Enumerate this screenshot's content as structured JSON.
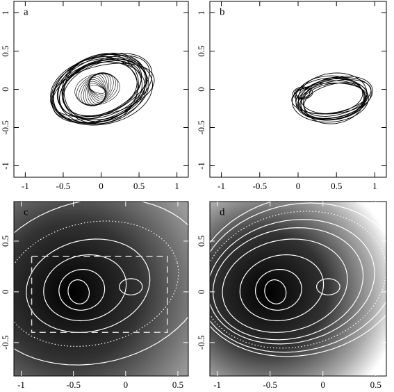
{
  "chart_data": [
    {
      "type": "orbit",
      "label": "a",
      "xlim": [
        -1.15,
        1.15
      ],
      "ylim": [
        -1.15,
        1.15
      ],
      "xticks": [
        -1,
        -0.5,
        0,
        0.5,
        1
      ],
      "yticks": [
        -1,
        -0.5,
        0,
        0.5,
        1
      ]
    },
    {
      "type": "orbit",
      "label": "b",
      "xlim": [
        -1.15,
        1.15
      ],
      "ylim": [
        -1.15,
        1.15
      ],
      "xticks": [
        -1,
        -0.5,
        0,
        0.5,
        1
      ],
      "yticks": [
        -1,
        -0.5,
        0,
        0.5,
        1
      ]
    },
    {
      "type": "contour",
      "label": "c",
      "xlim": [
        -1.07,
        0.6
      ],
      "ylim": [
        -0.83,
        0.89
      ],
      "xticks": [
        -1,
        -0.5,
        0,
        0.5
      ],
      "yticks": [
        -0.5,
        0,
        0.5
      ]
    },
    {
      "type": "contour",
      "label": "d",
      "xlim": [
        -1.07,
        0.6
      ],
      "ylim": [
        -0.83,
        0.89
      ],
      "xticks": [
        -1,
        -0.5,
        0,
        0.5
      ],
      "yticks": [
        -0.5,
        0,
        0.5
      ]
    }
  ]
}
